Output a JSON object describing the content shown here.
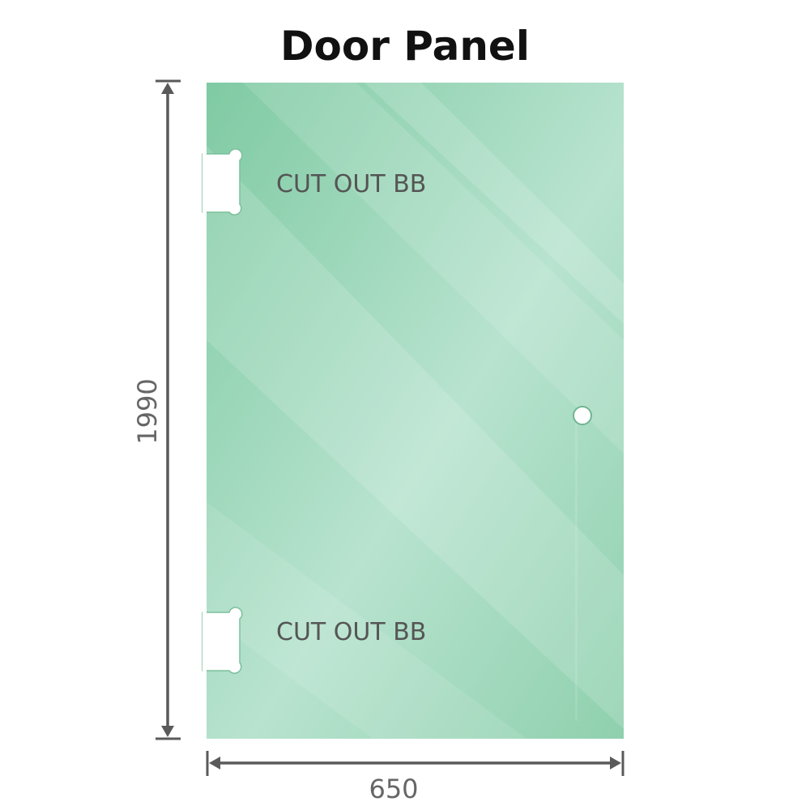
{
  "title": "Door Panel",
  "panel": {
    "glass_color": "#8fd0ae",
    "cutouts": [
      {
        "label": "CUT OUT BB"
      },
      {
        "label": "CUT OUT BB"
      }
    ]
  },
  "dimensions": {
    "height": "1990",
    "width": "650",
    "line_color": "#5a5a5a"
  }
}
